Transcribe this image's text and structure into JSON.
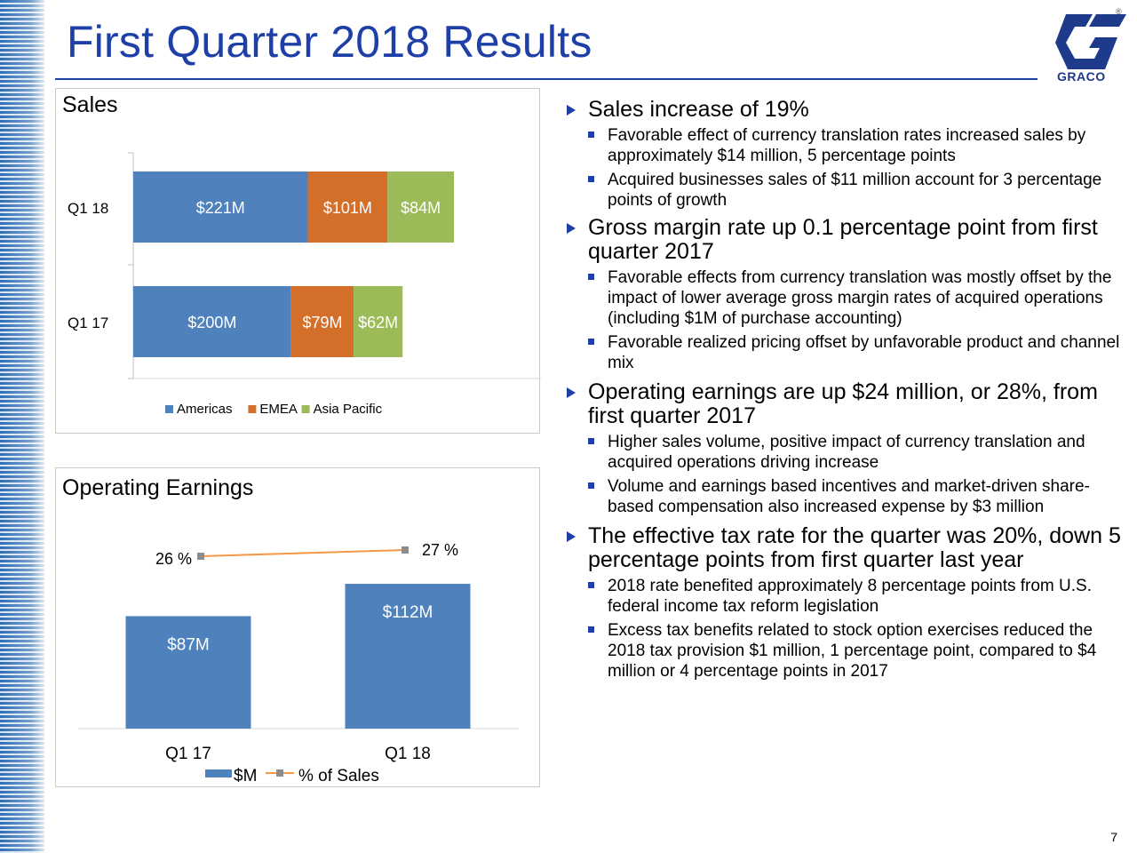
{
  "slide": {
    "title": "First Quarter 2018 Results",
    "page_number": "7",
    "logo_text": "GRACO",
    "logo_mark": "®"
  },
  "sales_panel": {
    "title": "Sales"
  },
  "oe_panel": {
    "title": "Operating Earnings"
  },
  "chart_data": [
    {
      "type": "bar",
      "orientation": "horizontal",
      "stacked": true,
      "title": "Sales",
      "categories": [
        "Q1 18",
        "Q1 17"
      ],
      "series": [
        {
          "name": "Americas",
          "values": [
            221,
            200
          ],
          "labels": [
            "$221M",
            "$200M"
          ],
          "color": "#4f81bd"
        },
        {
          "name": "EMEA",
          "values": [
            101,
            79
          ],
          "labels": [
            "$101M",
            "$79M"
          ],
          "color": "#d46f2a"
        },
        {
          "name": "Asia Pacific",
          "values": [
            84,
            62
          ],
          "labels": [
            "$84M",
            "$62M"
          ],
          "color": "#9bbb59"
        }
      ],
      "legend": "bottom",
      "grid": false
    },
    {
      "type": "bar",
      "title": "Operating Earnings",
      "categories": [
        "Q1 17",
        "Q1 18"
      ],
      "series": [
        {
          "name": "$M",
          "values": [
            87,
            112
          ],
          "labels": [
            "$87M",
            "$112M"
          ],
          "color": "#4f81bd"
        },
        {
          "name": "% of Sales",
          "type": "line",
          "values": [
            26,
            27
          ],
          "labels": [
            "26 %",
            "27 %"
          ],
          "color": "#f79646"
        }
      ],
      "legend": "bottom",
      "grid": false
    }
  ],
  "bullets": [
    {
      "text": "Sales increase of 19%",
      "sub": [
        "Favorable effect of currency translation rates increased sales by approximately $14 million, 5 percentage points",
        "Acquired businesses sales of $11 million account for 3 percentage points of growth"
      ]
    },
    {
      "text": "Gross margin rate up 0.1 percentage point from first quarter 2017",
      "sub": [
        "Favorable effects from currency translation was mostly offset by the impact of lower average gross margin rates of acquired operations (including $1M of purchase accounting)",
        "Favorable realized pricing offset by unfavorable product and channel mix"
      ]
    },
    {
      "text": "Operating earnings are up $24 million, or 28%, from first quarter 2017",
      "sub": [
        "Higher sales volume, positive impact of currency translation and acquired operations driving increase",
        "Volume and earnings based incentives and market-driven share-based compensation also increased expense by $3 million"
      ]
    },
    {
      "text": "The effective tax rate for the quarter was 20%, down 5 percentage points from first quarter last year",
      "sub": [
        "2018 rate benefited approximately 8 percentage points from U.S. federal income tax reform legislation",
        "Excess tax benefits related to stock option exercises reduced the 2018 tax provision $1 million, 1 percentage point, compared to $4 million or 4 percentage points in 2017"
      ]
    }
  ]
}
